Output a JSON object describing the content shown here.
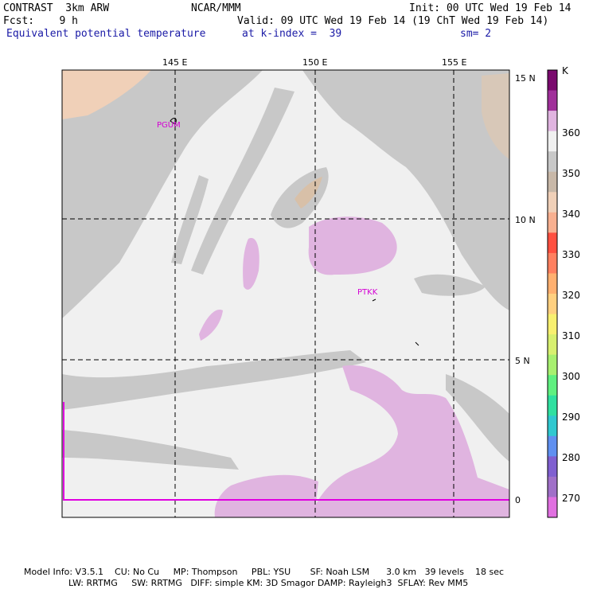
{
  "header": {
    "model": "CONTRAST  3km ARW",
    "org": "NCAR/MMM",
    "init": "Init: 00 UTC Wed 19 Feb 14",
    "fcst": "Fcst:    9 h",
    "valid": "Valid: 09 UTC Wed 19 Feb 14 (19 ChT Wed 19 Feb 14)",
    "field": "Equivalent potential temperature",
    "level": "at k-index =  39",
    "smooth": "sm= 2"
  },
  "map": {
    "lon_labels": [
      "145 E",
      "150 E",
      "155 E"
    ],
    "lat_labels": [
      "15 N",
      "10 N",
      "5 N",
      "0"
    ],
    "stations": [
      "PGUM",
      "PTKK"
    ]
  },
  "colorbar": {
    "unit": "K",
    "labels": [
      "360",
      "350",
      "340",
      "330",
      "320",
      "310",
      "300",
      "290",
      "280",
      "270"
    ],
    "colors": [
      "#7a0a6e",
      "#a0309a",
      "#e0b4e0",
      "#f0f0f0",
      "#c8c8c8",
      "#c8b8a8",
      "#f0d0b8",
      "#f8b090",
      "#ff5040",
      "#ff8060",
      "#ffb070",
      "#ffd080",
      "#f8f070",
      "#d8f070",
      "#a8f070",
      "#60f080",
      "#30e0a0",
      "#30c8d0",
      "#6090f0",
      "#8060d0",
      "#a070c8",
      "#e070e0"
    ]
  },
  "footer": {
    "line1": "Model Info: V3.5.1    CU: No Cu     MP: Thompson     PBL: YSU       SF: Noah LSM      3.0 km   39 levels    18 sec",
    "line2": "                LW: RRTMG     SW: RRTMG   DIFF: simple KM: 3D Smagor DAMP: Rayleigh3  SFLAY: Rev MM5"
  }
}
